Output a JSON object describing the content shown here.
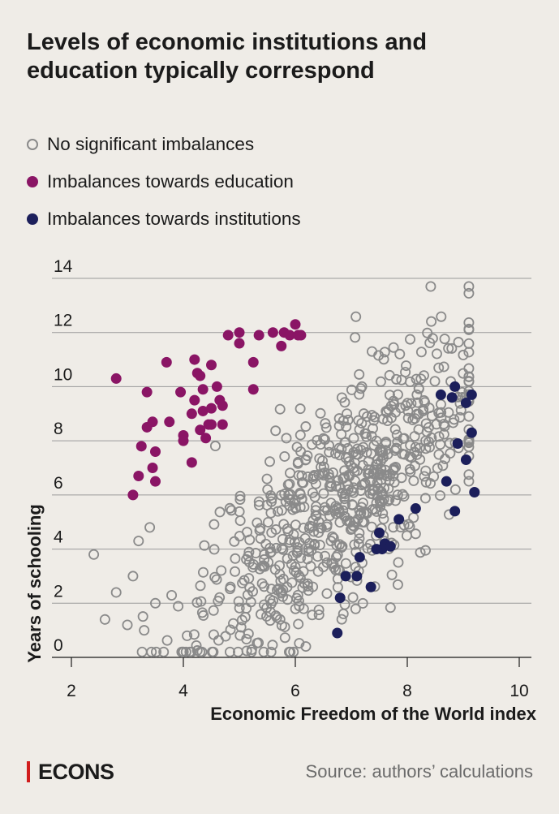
{
  "title": "Levels of economic institutions and education typically correspond",
  "legend": {
    "items": [
      {
        "label": "No significant imbalances",
        "style": "gray"
      },
      {
        "label": "Imbalances towards education",
        "style": "purple"
      },
      {
        "label": "Imbalances towards institutions",
        "style": "navy"
      }
    ]
  },
  "colors": {
    "background": "#efece7",
    "neutral": "#8a8a8a",
    "education": "#8a1565",
    "institutions": "#1c1f5b",
    "brand": "#d11d1d"
  },
  "footer": {
    "brand": "ECONS",
    "source": "Source: authors’ calculations"
  },
  "chart_data": {
    "type": "scatter",
    "title": "Levels of economic institutions and education typically correspond",
    "xlabel": "Economic Freedom of the World index",
    "ylabel": "Years of schooling",
    "xlim": [
      2,
      10
    ],
    "ylim": [
      0,
      14
    ],
    "x_ticks": [
      "2",
      "4",
      "6",
      "8",
      "10"
    ],
    "y_ticks": [
      "0",
      "2",
      "4",
      "6",
      "8",
      "10",
      "12",
      "14"
    ],
    "grid": "horizontal",
    "series": [
      {
        "name": "Imbalances towards education",
        "color": "#8a1565",
        "points": [
          [
            2.8,
            10.3
          ],
          [
            3.1,
            6.0
          ],
          [
            3.2,
            6.7
          ],
          [
            3.25,
            7.8
          ],
          [
            3.35,
            9.8
          ],
          [
            3.35,
            8.5
          ],
          [
            3.45,
            8.7
          ],
          [
            3.45,
            7.0
          ],
          [
            3.5,
            7.6
          ],
          [
            3.5,
            6.5
          ],
          [
            3.7,
            10.9
          ],
          [
            3.75,
            8.7
          ],
          [
            3.95,
            9.8
          ],
          [
            4.0,
            8.2
          ],
          [
            4.0,
            8.0
          ],
          [
            4.15,
            9.0
          ],
          [
            4.15,
            7.2
          ],
          [
            4.2,
            11.0
          ],
          [
            4.2,
            9.5
          ],
          [
            4.25,
            10.5
          ],
          [
            4.3,
            10.4
          ],
          [
            4.3,
            8.4
          ],
          [
            4.35,
            9.9
          ],
          [
            4.35,
            9.1
          ],
          [
            4.4,
            8.1
          ],
          [
            4.5,
            10.8
          ],
          [
            4.5,
            9.2
          ],
          [
            4.45,
            8.6
          ],
          [
            4.5,
            8.6
          ],
          [
            4.6,
            10.0
          ],
          [
            4.65,
            9.5
          ],
          [
            4.7,
            9.3
          ],
          [
            4.7,
            8.6
          ],
          [
            4.8,
            11.9
          ],
          [
            5.0,
            12.0
          ],
          [
            5.0,
            11.6
          ],
          [
            5.25,
            10.9
          ],
          [
            5.25,
            9.9
          ],
          [
            5.35,
            11.9
          ],
          [
            5.6,
            12.0
          ],
          [
            5.75,
            11.5
          ],
          [
            5.8,
            12.0
          ],
          [
            5.9,
            11.9
          ],
          [
            6.0,
            12.3
          ],
          [
            6.05,
            11.9
          ],
          [
            6.1,
            11.9
          ]
        ]
      },
      {
        "name": "Imbalances towards institutions",
        "color": "#1c1f5b",
        "points": [
          [
            6.75,
            0.9
          ],
          [
            6.8,
            2.2
          ],
          [
            6.9,
            3.0
          ],
          [
            7.1,
            3.0
          ],
          [
            7.15,
            3.7
          ],
          [
            7.35,
            2.6
          ],
          [
            7.45,
            4.0
          ],
          [
            7.5,
            4.6
          ],
          [
            7.55,
            4.0
          ],
          [
            7.6,
            4.2
          ],
          [
            7.7,
            4.1
          ],
          [
            7.85,
            5.1
          ],
          [
            8.15,
            5.5
          ],
          [
            8.6,
            9.7
          ],
          [
            8.7,
            6.5
          ],
          [
            8.8,
            9.6
          ],
          [
            8.85,
            5.4
          ],
          [
            8.85,
            10.0
          ],
          [
            8.9,
            7.9
          ],
          [
            9.05,
            9.4
          ],
          [
            9.05,
            7.3
          ],
          [
            9.15,
            8.3
          ],
          [
            9.15,
            9.7
          ],
          [
            9.2,
            6.1
          ]
        ]
      }
    ]
  }
}
